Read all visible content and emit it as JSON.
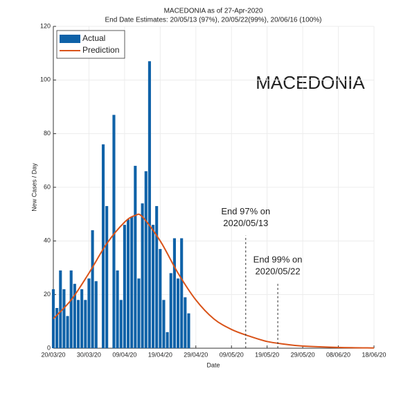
{
  "chart_data": {
    "type": "bar+line",
    "title": "MACEDONIA as of 27-Apr-2020",
    "subtitle": "End Date Estimates: 20/05/13 (97%), 20/05/22(99%), 20/06/16 (100%)",
    "watermark": "MACEDONIA",
    "xlabel": "Date",
    "ylabel": "New Cases / Day",
    "xlim": [
      "20/03/20",
      "18/06/20"
    ],
    "xticks": [
      "20/03/20",
      "30/03/20",
      "09/04/20",
      "19/04/20",
      "29/04/20",
      "09/05/20",
      "19/05/20",
      "29/05/20",
      "08/06/20",
      "18/06/20"
    ],
    "ylim": [
      0,
      120
    ],
    "yticks": [
      0,
      20,
      40,
      60,
      80,
      100,
      120
    ],
    "grid": true,
    "legend": "upper-left",
    "series": [
      {
        "name": "Actual",
        "type": "bar",
        "color": "#0f62a8",
        "x": [
          "20/03/20",
          "21/03/20",
          "22/03/20",
          "23/03/20",
          "24/03/20",
          "25/03/20",
          "26/03/20",
          "27/03/20",
          "28/03/20",
          "29/03/20",
          "30/03/20",
          "31/03/20",
          "01/04/20",
          "02/04/20",
          "03/04/20",
          "04/04/20",
          "05/04/20",
          "06/04/20",
          "07/04/20",
          "08/04/20",
          "09/04/20",
          "10/04/20",
          "11/04/20",
          "12/04/20",
          "13/04/20",
          "14/04/20",
          "15/04/20",
          "16/04/20",
          "17/04/20",
          "18/04/20",
          "19/04/20",
          "20/04/20",
          "21/04/20",
          "22/04/20",
          "23/04/20",
          "24/04/20",
          "25/04/20",
          "26/04/20",
          "27/04/20"
        ],
        "values": [
          22,
          15,
          29,
          22,
          12,
          29,
          24,
          18,
          22,
          18,
          26,
          44,
          25,
          0,
          76,
          53,
          0,
          87,
          29,
          18,
          46,
          48,
          49,
          68,
          26,
          54,
          66,
          107,
          46,
          53,
          37,
          18,
          6,
          28,
          41,
          26,
          41,
          19,
          13
        ]
      },
      {
        "name": "Prediction",
        "type": "line",
        "color": "#d95319",
        "x": [
          "20/03/20",
          "25/03/20",
          "30/03/20",
          "04/04/20",
          "09/04/20",
          "12/04/20",
          "14/04/20",
          "19/04/20",
          "24/04/20",
          "29/04/20",
          "04/05/20",
          "09/05/20",
          "14/05/20",
          "19/05/20",
          "24/05/20",
          "29/05/20",
          "08/06/20",
          "18/06/20"
        ],
        "values": [
          11,
          18,
          28,
          39,
          47,
          49.5,
          49,
          40,
          28,
          18,
          11,
          7,
          4.5,
          2.5,
          1.5,
          0.8,
          0.3,
          0.1
        ]
      }
    ],
    "annotations": [
      {
        "x": "13/05/20",
        "top": 42,
        "lines": [
          "End 97% on",
          "2020/05/13"
        ]
      },
      {
        "x": "22/05/20",
        "top": 24,
        "lines": [
          "End 99% on",
          "2020/05/22"
        ]
      }
    ]
  }
}
